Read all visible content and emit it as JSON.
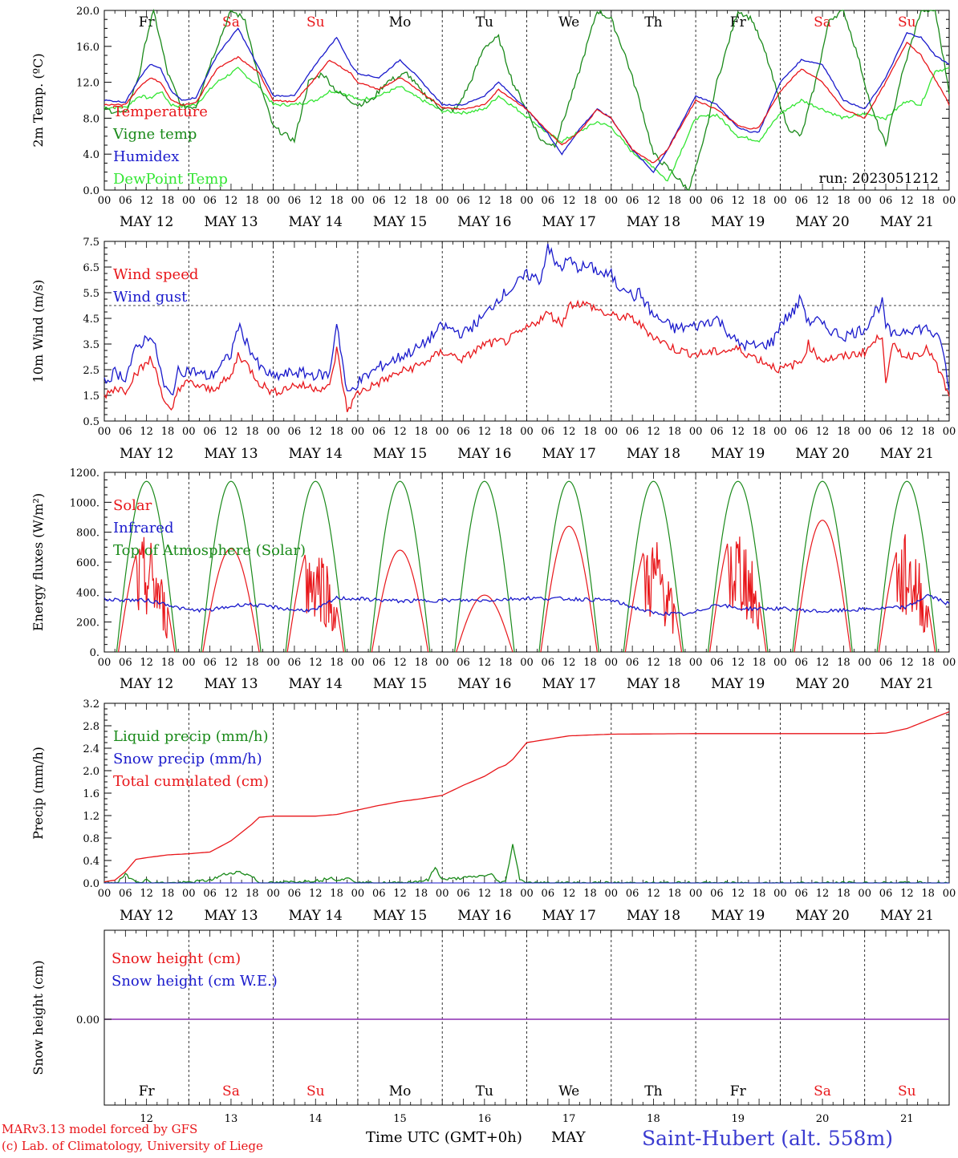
{
  "colors": {
    "red": "#e8161a",
    "blue": "#1a1acc",
    "darkgreen": "#1a8a1a",
    "lightgreen": "#33e633",
    "purple": "#8b2bb0",
    "saturday": "#e8161a",
    "weekday": "#000000",
    "title_blue": "#3a3ad0"
  },
  "days": {
    "dates": [
      "MAY 12",
      "MAY 13",
      "MAY 14",
      "MAY 15",
      "MAY 16",
      "MAY 17",
      "MAY 18",
      "MAY 19",
      "MAY 20",
      "MAY 21"
    ],
    "weekdays": [
      "Fr",
      "Sa",
      "Su",
      "Mo",
      "Tu",
      "We",
      "Th",
      "Fr",
      "Sa",
      "Su"
    ],
    "weekend_flags": [
      false,
      true,
      true,
      false,
      false,
      false,
      false,
      false,
      true,
      true
    ],
    "day_numbers": [
      "12",
      "13",
      "14",
      "15",
      "16",
      "17",
      "18",
      "19",
      "20",
      "21"
    ],
    "hour_ticks": [
      "00",
      "06",
      "12",
      "18"
    ],
    "final_tick": "00"
  },
  "footer": {
    "credit_line1": "MARv3.13 model forced by GFS",
    "credit_line2": "(c) Lab. of Climatology, University of Liege",
    "xlabel": "Time UTC (GMT+0h)",
    "month": "MAY",
    "station": "Saint-Hubert (alt. 558m)"
  },
  "chart_data": [
    {
      "id": "temp",
      "type": "line",
      "ylabel": "2m Temp. (ºC)",
      "ylim": [
        0,
        20
      ],
      "yticks": [
        "0.0",
        "4.0",
        "8.0",
        "12.0",
        "16.0",
        "20.0"
      ],
      "annotation": "run: 2023051212",
      "x_unit": "hours since MAY 12 00 UTC",
      "series": [
        {
          "name": "Temperature",
          "color": "#e8161a",
          "x": [
            0,
            6,
            10,
            13,
            16,
            19,
            22,
            26,
            32,
            38,
            44,
            48,
            54,
            60,
            64,
            70,
            72,
            78,
            84,
            88,
            96,
            102,
            108,
            112,
            120,
            126,
            130,
            135,
            140,
            144,
            150,
            156,
            160,
            168,
            174,
            180,
            183,
            186,
            192,
            198,
            204,
            210,
            216,
            222,
            228,
            232,
            238,
            240
          ],
          "values": [
            9.5,
            9.5,
            11.5,
            12.5,
            12,
            10,
            9.5,
            9.7,
            13.5,
            14.8,
            13,
            10,
            9.8,
            12.5,
            14.5,
            13,
            12,
            11.2,
            12.5,
            11.5,
            9.2,
            9,
            9.5,
            11.2,
            9,
            6.5,
            5,
            6.5,
            9,
            8,
            4.5,
            3,
            4.5,
            10,
            9,
            7.2,
            6.8,
            7,
            11,
            13.5,
            12,
            9,
            8,
            12,
            16.5,
            15,
            11,
            9.5
          ]
        },
        {
          "name": "Vigne temp",
          "color": "#1a8a1a",
          "x": [
            0,
            6,
            10,
            12,
            14,
            18,
            22,
            26,
            30,
            36,
            40,
            44,
            48,
            54,
            58,
            62,
            66,
            72,
            76,
            80,
            86,
            90,
            96,
            100,
            104,
            108,
            112,
            116,
            120,
            124,
            128,
            134,
            140,
            144,
            148,
            152,
            156,
            160,
            166,
            170,
            174,
            180,
            184,
            188,
            194,
            198,
            202,
            206,
            210,
            214,
            218,
            222,
            226,
            232,
            236,
            240
          ],
          "values": [
            9,
            8.5,
            13,
            17,
            20,
            13,
            9.3,
            9.3,
            14,
            20,
            19,
            12,
            7,
            5.5,
            12,
            13,
            11,
            9.5,
            10,
            12,
            13,
            11,
            9,
            9,
            12,
            16,
            17,
            12,
            9,
            5.5,
            5,
            12,
            20,
            19,
            15,
            10,
            4,
            2.5,
            0,
            5,
            12,
            20,
            19,
            15,
            7,
            6,
            12,
            19,
            20,
            15,
            9,
            5,
            12,
            20,
            20,
            11
          ]
        },
        {
          "name": "Humidex",
          "color": "#1a1acc",
          "x": [
            0,
            6,
            10,
            13,
            16,
            19,
            22,
            26,
            32,
            38,
            42,
            44,
            48,
            54,
            60,
            64,
            66,
            70,
            72,
            78,
            84,
            88,
            96,
            102,
            108,
            112,
            120,
            126,
            130,
            135,
            140,
            144,
            150,
            156,
            160,
            168,
            174,
            180,
            183,
            186,
            192,
            198,
            204,
            210,
            216,
            222,
            228,
            232,
            236,
            240
          ],
          "values": [
            10,
            9.8,
            12.5,
            14,
            13.5,
            11,
            10,
            10.3,
            15,
            18,
            15,
            13.5,
            10.5,
            10.5,
            14,
            16,
            17,
            14,
            13,
            12.5,
            14.5,
            13,
            9.5,
            9.5,
            10.5,
            12,
            9,
            6.3,
            4,
            6.8,
            9,
            8,
            4.5,
            2,
            4.5,
            10.5,
            9.5,
            7,
            6.5,
            6.5,
            12,
            14.5,
            14,
            10,
            9,
            12.5,
            17.5,
            17,
            15,
            14
          ]
        },
        {
          "name": "DewPoint Temp",
          "color": "#33e633",
          "x": [
            0,
            6,
            10,
            13,
            16,
            19,
            22,
            26,
            32,
            38,
            44,
            48,
            54,
            60,
            64,
            66,
            70,
            72,
            78,
            84,
            88,
            96,
            102,
            108,
            112,
            120,
            126,
            130,
            135,
            140,
            144,
            150,
            156,
            160,
            168,
            174,
            180,
            186,
            192,
            198,
            204,
            210,
            216,
            222,
            228,
            232,
            236,
            240
          ],
          "values": [
            9.2,
            9.2,
            10.5,
            10.2,
            11,
            9.5,
            9.3,
            9.5,
            12,
            13.5,
            11.5,
            9.5,
            9.5,
            10,
            11,
            11,
            10.5,
            10,
            10.5,
            11.5,
            10.5,
            8.8,
            8.6,
            9,
            10.5,
            8.2,
            6.3,
            5.4,
            6.5,
            7.6,
            7,
            4.2,
            2.6,
            1,
            8,
            8.4,
            6,
            5.5,
            8.5,
            10,
            9,
            8,
            8.5,
            8,
            10,
            9.5,
            13.3,
            13.5
          ]
        }
      ]
    },
    {
      "id": "wind",
      "type": "line",
      "ylabel": "10m Wind (m/s)",
      "ylim": [
        0.5,
        7.5
      ],
      "yticks": [
        "0.5",
        "1.5",
        "2.5",
        "3.5",
        "4.5",
        "5.5",
        "6.5",
        "7.5"
      ],
      "reference_line": 5.0,
      "x_unit": "hours since MAY 12 00 UTC",
      "series": [
        {
          "name": "Wind speed",
          "color": "#e8161a",
          "x": [
            0,
            3,
            6,
            9,
            11,
            13,
            15,
            17,
            19,
            21,
            24,
            30,
            36,
            38,
            40,
            44,
            48,
            54,
            60,
            64,
            66,
            69,
            72,
            78,
            84,
            90,
            96,
            102,
            108,
            114,
            120,
            126,
            130,
            132,
            134,
            138,
            142,
            144,
            150,
            156,
            162,
            168,
            174,
            180,
            186,
            192,
            198,
            200,
            202,
            204,
            210,
            216,
            219,
            221,
            222,
            224,
            228,
            234,
            238,
            240
          ],
          "values": [
            1.5,
            1.8,
            1.7,
            2.4,
            2.6,
            2.9,
            2.4,
            1.2,
            0.8,
            1.8,
            2.0,
            1.7,
            2.2,
            3.1,
            2.8,
            2.0,
            1.6,
            1.9,
            1.8,
            1.8,
            3.3,
            0.9,
            1.6,
            2.0,
            2.4,
            2.7,
            3.2,
            2.9,
            3.5,
            3.6,
            4.1,
            4.7,
            4.3,
            5.0,
            5.1,
            5.0,
            4.7,
            4.6,
            4.5,
            3.8,
            3.3,
            3.1,
            3.2,
            3.3,
            2.9,
            2.5,
            2.8,
            3.5,
            3.1,
            2.9,
            3.0,
            3.2,
            3.6,
            3.9,
            2.1,
            3.4,
            3.0,
            3.3,
            2.2,
            1.4
          ]
        },
        {
          "name": "Wind gust",
          "color": "#1a1acc",
          "x": [
            0,
            3,
            6,
            9,
            11,
            13,
            15,
            17,
            19,
            21,
            24,
            30,
            36,
            38,
            40,
            44,
            48,
            54,
            60,
            64,
            66,
            69,
            72,
            78,
            84,
            90,
            96,
            102,
            108,
            112,
            116,
            120,
            124,
            126,
            128,
            130,
            132,
            134,
            138,
            142,
            144,
            146,
            148,
            150,
            152,
            156,
            162,
            168,
            174,
            180,
            186,
            190,
            192,
            196,
            198,
            200,
            202,
            204,
            210,
            216,
            219,
            221,
            222,
            224,
            228,
            234,
            238,
            240
          ],
          "values": [
            2.0,
            2.4,
            2.2,
            3.3,
            3.6,
            3.9,
            3.1,
            1.8,
            1.5,
            2.4,
            2.5,
            2.2,
            3.1,
            4.2,
            3.7,
            2.6,
            2.2,
            2.4,
            2.3,
            2.3,
            4.4,
            1.5,
            2.0,
            2.6,
            3.0,
            3.4,
            4.2,
            3.9,
            4.6,
            5.3,
            5.7,
            6.2,
            6.0,
            7.4,
            6.6,
            6.5,
            6.8,
            6.5,
            6.5,
            6.2,
            6.2,
            5.7,
            5.8,
            5.3,
            5.5,
            4.6,
            4.1,
            4.2,
            4.5,
            3.5,
            3.4,
            3.6,
            4.3,
            4.8,
            5.3,
            4.3,
            4.5,
            4.2,
            3.8,
            4.1,
            4.8,
            5.1,
            4.2,
            3.8,
            4.1,
            4.1,
            3.5,
            1.6
          ]
        }
      ]
    },
    {
      "id": "flux",
      "type": "line",
      "ylabel": "Energy fluxes (W/m²)",
      "ylim": [
        0,
        1200
      ],
      "yticks": [
        "0.",
        "200.",
        "400.",
        "600.",
        "800.",
        "1000.",
        "1200."
      ],
      "x_unit": "hours since MAY 12 00 UTC",
      "solar_peaks": [
        780,
        690,
        780,
        680,
        380,
        840,
        790,
        870,
        880,
        800
      ],
      "solar_cloudy_days": [
        true,
        false,
        true,
        false,
        false,
        false,
        true,
        true,
        false,
        true
      ],
      "toa_peak": 1140,
      "series": [
        {
          "name": "Solar",
          "color": "#e8161a"
        },
        {
          "name": "Infrared",
          "color": "#1a1acc",
          "x": [
            0,
            12,
            18,
            20,
            24,
            30,
            40,
            48,
            54,
            60,
            66,
            72,
            84,
            96,
            108,
            120,
            132,
            144,
            150,
            156,
            166,
            174,
            180,
            192,
            204,
            216,
            228,
            234,
            240
          ],
          "values": [
            350,
            345,
            320,
            300,
            280,
            280,
            320,
            300,
            280,
            280,
            360,
            355,
            340,
            345,
            345,
            360,
            355,
            345,
            300,
            260,
            250,
            320,
            290,
            290,
            270,
            285,
            300,
            380,
            320
          ]
        },
        {
          "name": "Top of Atmosphere (Solar)",
          "color": "#1a8a1a"
        }
      ]
    },
    {
      "id": "precip",
      "type": "line",
      "ylabel": "Precip (mm/h)",
      "ylim": [
        0,
        3.2
      ],
      "yticks": [
        "0.0",
        "0.4",
        "0.8",
        "1.2",
        "1.6",
        "2.0",
        "2.4",
        "2.8",
        "3.2"
      ],
      "x_unit": "hours since MAY 12 00 UTC",
      "series": [
        {
          "name": "Liquid precip (mm/h)",
          "color": "#1a8a1a",
          "x": [
            0,
            4,
            6,
            8,
            10,
            12,
            14,
            22,
            30,
            34,
            38,
            42,
            44,
            48,
            62,
            64,
            66,
            70,
            72,
            84,
            92,
            94,
            96,
            104,
            110,
            112,
            114,
            116,
            118,
            120,
            124,
            126,
            240
          ],
          "values": [
            0,
            0.02,
            0.15,
            0.06,
            0.02,
            0.05,
            0,
            0,
            0.05,
            0.15,
            0.2,
            0.12,
            0,
            0,
            0.05,
            0.1,
            0.06,
            0.08,
            0,
            0,
            0.05,
            0.28,
            0.06,
            0.1,
            0.15,
            0.02,
            0.02,
            0.7,
            0.08,
            0,
            0,
            0,
            0
          ]
        },
        {
          "name": "Snow precip (mm/h)",
          "color": "#1a1acc"
        },
        {
          "name": "Total cumulated (cm)",
          "color": "#e8161a",
          "x": [
            0,
            3,
            6,
            9,
            12,
            18,
            24,
            30,
            36,
            42,
            44,
            48,
            60,
            66,
            72,
            78,
            84,
            90,
            96,
            102,
            108,
            112,
            114,
            116,
            120,
            132,
            144,
            168,
            192,
            216,
            222,
            228,
            234,
            240
          ],
          "values": [
            0.02,
            0.05,
            0.2,
            0.42,
            0.45,
            0.5,
            0.52,
            0.55,
            0.75,
            1.05,
            1.17,
            1.19,
            1.19,
            1.22,
            1.3,
            1.38,
            1.45,
            1.5,
            1.56,
            1.74,
            1.9,
            2.05,
            2.1,
            2.2,
            2.5,
            2.62,
            2.65,
            2.66,
            2.66,
            2.66,
            2.67,
            2.75,
            2.9,
            3.05
          ]
        }
      ]
    },
    {
      "id": "snow",
      "type": "line",
      "ylabel": "Snow height (cm)",
      "value_label": "0.00",
      "x_unit": "hours since MAY 12 00 UTC",
      "series": [
        {
          "name": "Snow height (cm)",
          "color": "#e8161a",
          "x": [
            0,
            240
          ],
          "values": [
            0,
            0
          ]
        },
        {
          "name": "Snow height (cm W.E.)",
          "color": "#1a1acc",
          "x": [
            0,
            240
          ],
          "values": [
            0,
            0
          ]
        }
      ]
    }
  ]
}
